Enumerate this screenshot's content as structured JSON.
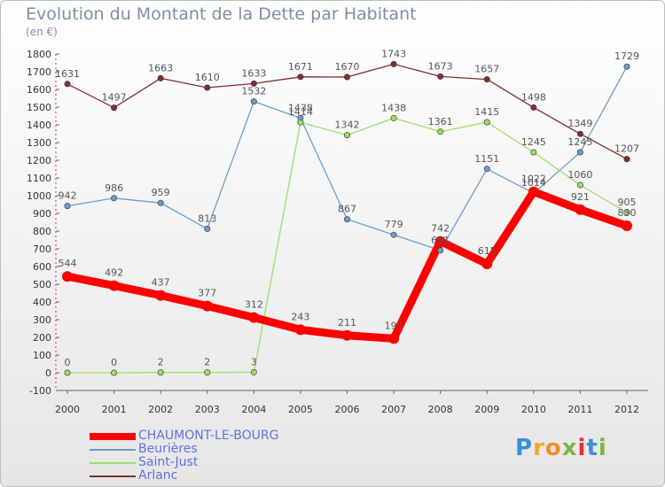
{
  "header": {
    "title": "Evolution du Montant de la Dette par Habitant",
    "subtitle": "(en €)"
  },
  "logo": {
    "text": "Proxiti"
  },
  "colors": {
    "chaumont": "#ff0000",
    "beurieres": "#6c9ccc",
    "saint_just": "#99e066",
    "arlanc": "#7f2f2f",
    "axis_text": "#333333",
    "label_text": "#555555",
    "legend_text": "#6070dd"
  },
  "chart_data": {
    "type": "line",
    "x": [
      "2000",
      "2001",
      "2002",
      "2003",
      "2004",
      "2005",
      "2006",
      "2007",
      "2008",
      "2009",
      "2010",
      "2011",
      "2012"
    ],
    "y_ticks": [
      "-100",
      "0",
      "100",
      "200",
      "300",
      "400",
      "500",
      "600",
      "700",
      "800",
      "900",
      "1000",
      "1100",
      "1200",
      "1300",
      "1400",
      "1500",
      "1600",
      "1700",
      "1800"
    ],
    "ylim": [
      -100,
      1800
    ],
    "grid": false,
    "legend_position": "bottom-left",
    "series": [
      {
        "name": "CHAUMONT-LE-BOURG",
        "key": "chaumont",
        "values": [
          544,
          492,
          437,
          377,
          312,
          243,
          211,
          193,
          742,
          615,
          1022,
          921,
          830
        ]
      },
      {
        "name": "Beurières",
        "key": "beurieres",
        "values": [
          942,
          986,
          959,
          813,
          1532,
          1438,
          867,
          779,
          691,
          1151,
          1014,
          1245,
          1729
        ]
      },
      {
        "name": "Saint-Just",
        "key": "saint_just",
        "values": [
          0,
          0,
          2,
          2,
          3,
          1414,
          1342,
          1438,
          1361,
          1415,
          1245,
          1060,
          905
        ]
      },
      {
        "name": "Arlanc",
        "key": "arlanc",
        "values": [
          1631,
          1497,
          1663,
          1610,
          1633,
          1671,
          1670,
          1743,
          1673,
          1657,
          1498,
          1349,
          1207
        ]
      }
    ]
  }
}
